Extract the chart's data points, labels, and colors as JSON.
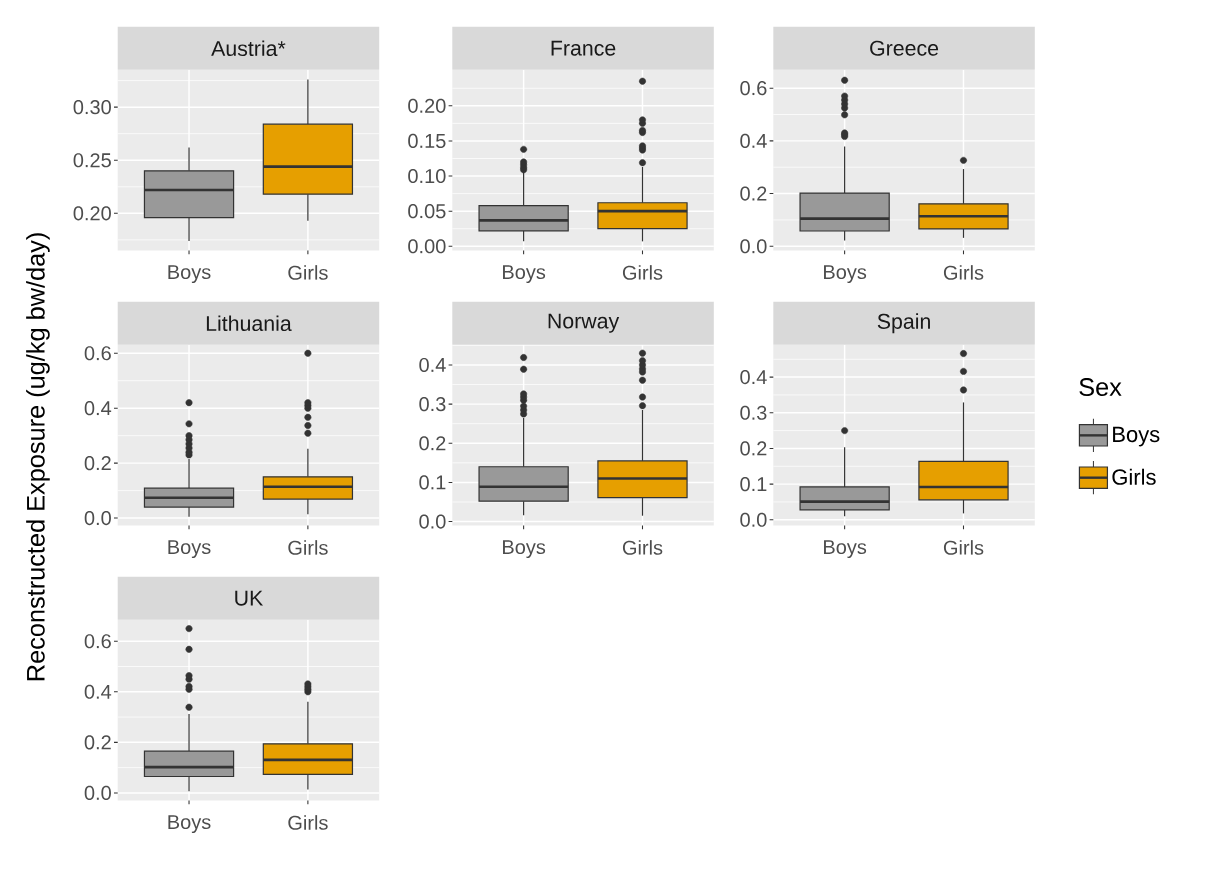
{
  "chart_data": [
    {
      "type": "box",
      "title": "Austria*",
      "categories": [
        "Boys",
        "Girls"
      ],
      "series": [
        {
          "color": "#999999",
          "boxes": [
            {
              "low": 0.174,
              "q1": 0.196,
              "median": 0.222,
              "q3": 0.24,
              "high": 0.262
            },
            null
          ]
        },
        {
          "color": "#e69f00",
          "boxes": [
            null,
            {
              "low": 0.193,
              "q1": 0.218,
              "median": 0.244,
              "q3": 0.284,
              "high": 0.326
            }
          ]
        }
      ],
      "ylim": [
        0.165,
        0.335
      ],
      "yticks": [
        {
          "value": 0.2,
          "label": "0.20"
        },
        {
          "value": 0.25,
          "label": "0.25"
        },
        {
          "value": 0.3,
          "label": "0.30"
        }
      ],
      "grid": true
    },
    {
      "type": "box",
      "title": "France",
      "categories": [
        "Boys",
        "Girls"
      ],
      "series": [
        {
          "color": "#999999",
          "boxes": [
            {
              "low": 0.007,
              "q1": 0.022,
              "median": 0.037,
              "q3": 0.058,
              "high": 0.106,
              "outliers": [
                0.109,
                0.112,
                0.116,
                0.12,
                0.138
              ]
            },
            null
          ]
        },
        {
          "color": "#e69f00",
          "boxes": [
            null,
            {
              "low": 0.007,
              "q1": 0.025,
              "median": 0.05,
              "q3": 0.062,
              "high": 0.113,
              "outliers": [
                0.119,
                0.137,
                0.14,
                0.143,
                0.162,
                0.165,
                0.175,
                0.18,
                0.235
              ]
            }
          ]
        }
      ],
      "ylim": [
        -0.006,
        0.251
      ],
      "yticks": [
        {
          "value": 0,
          "label": "0.00"
        },
        {
          "value": 0.05,
          "label": "0.05"
        },
        {
          "value": 0.1,
          "label": "0.10"
        },
        {
          "value": 0.15,
          "label": "0.15"
        },
        {
          "value": 0.2,
          "label": "0.20"
        }
      ],
      "grid": true
    },
    {
      "type": "box",
      "title": "Greece",
      "categories": [
        "Boys",
        "Girls"
      ],
      "series": [
        {
          "color": "#999999",
          "boxes": [
            {
              "low": 0.022,
              "q1": 0.058,
              "median": 0.105,
              "q3": 0.202,
              "high": 0.379,
              "outliers": [
                0.417,
                0.424,
                0.43,
                0.499,
                0.525,
                0.54,
                0.555,
                0.57,
                0.63
              ]
            },
            null
          ]
        },
        {
          "color": "#e69f00",
          "boxes": [
            null,
            {
              "low": 0.032,
              "q1": 0.066,
              "median": 0.114,
              "q3": 0.161,
              "high": 0.293,
              "outliers": [
                0.326
              ]
            }
          ]
        }
      ],
      "ylim": [
        -0.016,
        0.669
      ],
      "yticks": [
        {
          "value": 0,
          "label": "0.0"
        },
        {
          "value": 0.2,
          "label": "0.2"
        },
        {
          "value": 0.4,
          "label": "0.4"
        },
        {
          "value": 0.6,
          "label": "0.6"
        }
      ],
      "grid": true
    },
    {
      "type": "box",
      "title": "Lithuania",
      "ylabel": "Reconstructed Exposure (ug/kg bw/day)",
      "categories": [
        "Boys",
        "Girls"
      ],
      "series": [
        {
          "color": "#999999",
          "boxes": [
            {
              "low": 0.005,
              "q1": 0.04,
              "median": 0.074,
              "q3": 0.109,
              "high": 0.215,
              "outliers": [
                0.23,
                0.24,
                0.255,
                0.27,
                0.285,
                0.3,
                0.343,
                0.42
              ]
            },
            null
          ]
        },
        {
          "color": "#e69f00",
          "boxes": [
            null,
            {
              "low": 0.014,
              "q1": 0.069,
              "median": 0.114,
              "q3": 0.15,
              "high": 0.252,
              "outliers": [
                0.309,
                0.337,
                0.367,
                0.4,
                0.41,
                0.42,
                0.6
              ]
            }
          ]
        }
      ],
      "ylim": [
        -0.027,
        0.63
      ],
      "yticks": [
        {
          "value": 0,
          "label": "0.0"
        },
        {
          "value": 0.2,
          "label": "0.2"
        },
        {
          "value": 0.4,
          "label": "0.4"
        },
        {
          "value": 0.6,
          "label": "0.6"
        }
      ],
      "grid": true
    },
    {
      "type": "box",
      "title": "Norway",
      "categories": [
        "Boys",
        "Girls"
      ],
      "series": [
        {
          "color": "#999999",
          "boxes": [
            {
              "low": 0.016,
              "q1": 0.052,
              "median": 0.089,
              "q3": 0.14,
              "high": 0.265,
              "outliers": [
                0.275,
                0.285,
                0.295,
                0.31,
                0.318,
                0.326,
                0.389,
                0.419
              ]
            },
            null
          ]
        },
        {
          "color": "#e69f00",
          "boxes": [
            null,
            {
              "low": 0.015,
              "q1": 0.061,
              "median": 0.11,
              "q3": 0.155,
              "high": 0.285,
              "outliers": [
                0.296,
                0.318,
                0.361,
                0.382,
                0.39,
                0.4,
                0.411,
                0.43
              ]
            }
          ]
        }
      ],
      "ylim": [
        -0.01,
        0.451
      ],
      "yticks": [
        {
          "value": 0,
          "label": "0.0"
        },
        {
          "value": 0.1,
          "label": "0.1"
        },
        {
          "value": 0.2,
          "label": "0.2"
        },
        {
          "value": 0.3,
          "label": "0.3"
        },
        {
          "value": 0.4,
          "label": "0.4"
        }
      ],
      "grid": true
    },
    {
      "type": "box",
      "title": "Spain",
      "categories": [
        "Boys",
        "Girls"
      ],
      "series": [
        {
          "name": "Boys",
          "color": "#999999",
          "boxes": [
            {
              "low": 0.01,
              "q1": 0.028,
              "median": 0.051,
              "q3": 0.092,
              "high": 0.203,
              "outliers": [
                0.25
              ]
            },
            null
          ]
        },
        {
          "name": "Girls",
          "color": "#e69f00",
          "boxes": [
            null,
            {
              "low": 0.018,
              "q1": 0.056,
              "median": 0.092,
              "q3": 0.164,
              "high": 0.329,
              "outliers": [
                0.364,
                0.416,
                0.466
              ]
            }
          ]
        }
      ],
      "ylim": [
        -0.016,
        0.49
      ],
      "yticks": [
        {
          "value": 0,
          "label": "0.0"
        },
        {
          "value": 0.1,
          "label": "0.1"
        },
        {
          "value": 0.2,
          "label": "0.2"
        },
        {
          "value": 0.3,
          "label": "0.3"
        },
        {
          "value": 0.4,
          "label": "0.4"
        }
      ],
      "grid": true,
      "legend": "right",
      "legend_title": "Sex"
    },
    {
      "type": "box",
      "title": "UK",
      "categories": [
        "Boys",
        "Girls"
      ],
      "series": [
        {
          "color": "#999999",
          "boxes": [
            {
              "low": 0.007,
              "q1": 0.065,
              "median": 0.102,
              "q3": 0.165,
              "high": 0.312,
              "outliers": [
                0.339,
                0.41,
                0.421,
                0.45,
                0.464,
                0.568,
                0.65
              ]
            },
            null
          ]
        },
        {
          "color": "#e69f00",
          "boxes": [
            null,
            {
              "low": 0.014,
              "q1": 0.073,
              "median": 0.131,
              "q3": 0.194,
              "high": 0.361,
              "outliers": [
                0.4,
                0.41,
                0.42,
                0.431
              ]
            }
          ]
        }
      ],
      "ylim": [
        -0.03,
        0.684
      ],
      "yticks": [
        {
          "value": 0,
          "label": "0.0"
        },
        {
          "value": 0.2,
          "label": "0.2"
        },
        {
          "value": 0.4,
          "label": "0.4"
        },
        {
          "value": 0.6,
          "label": "0.6"
        }
      ],
      "grid": true
    }
  ]
}
